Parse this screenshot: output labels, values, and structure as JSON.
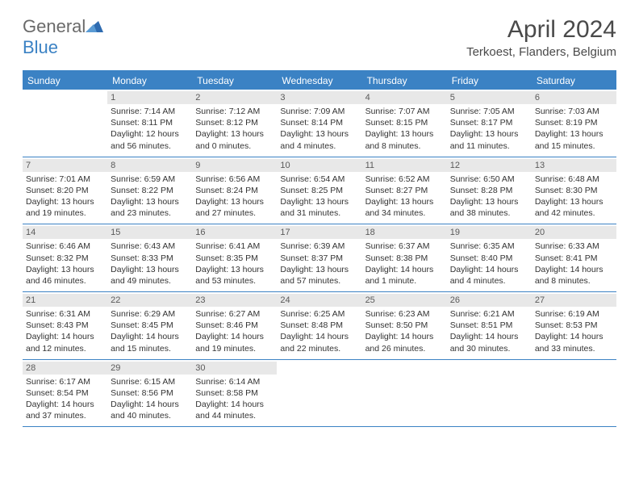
{
  "brand": {
    "name_part1": "General",
    "name_part2": "Blue",
    "icon_color": "#2e6bb0"
  },
  "title": "April 2024",
  "location": "Terkoest, Flanders, Belgium",
  "colors": {
    "header_bg": "#3b82c4",
    "header_text": "#ffffff",
    "daynum_bg": "#e8e8e8",
    "border": "#3b82c4",
    "body_text": "#333333",
    "title_text": "#4a4a4a"
  },
  "weekdays": [
    "Sunday",
    "Monday",
    "Tuesday",
    "Wednesday",
    "Thursday",
    "Friday",
    "Saturday"
  ],
  "weeks": [
    [
      null,
      {
        "n": "1",
        "sr": "7:14 AM",
        "ss": "8:11 PM",
        "dl": "12 hours and 56 minutes."
      },
      {
        "n": "2",
        "sr": "7:12 AM",
        "ss": "8:12 PM",
        "dl": "13 hours and 0 minutes."
      },
      {
        "n": "3",
        "sr": "7:09 AM",
        "ss": "8:14 PM",
        "dl": "13 hours and 4 minutes."
      },
      {
        "n": "4",
        "sr": "7:07 AM",
        "ss": "8:15 PM",
        "dl": "13 hours and 8 minutes."
      },
      {
        "n": "5",
        "sr": "7:05 AM",
        "ss": "8:17 PM",
        "dl": "13 hours and 11 minutes."
      },
      {
        "n": "6",
        "sr": "7:03 AM",
        "ss": "8:19 PM",
        "dl": "13 hours and 15 minutes."
      }
    ],
    [
      {
        "n": "7",
        "sr": "7:01 AM",
        "ss": "8:20 PM",
        "dl": "13 hours and 19 minutes."
      },
      {
        "n": "8",
        "sr": "6:59 AM",
        "ss": "8:22 PM",
        "dl": "13 hours and 23 minutes."
      },
      {
        "n": "9",
        "sr": "6:56 AM",
        "ss": "8:24 PM",
        "dl": "13 hours and 27 minutes."
      },
      {
        "n": "10",
        "sr": "6:54 AM",
        "ss": "8:25 PM",
        "dl": "13 hours and 31 minutes."
      },
      {
        "n": "11",
        "sr": "6:52 AM",
        "ss": "8:27 PM",
        "dl": "13 hours and 34 minutes."
      },
      {
        "n": "12",
        "sr": "6:50 AM",
        "ss": "8:28 PM",
        "dl": "13 hours and 38 minutes."
      },
      {
        "n": "13",
        "sr": "6:48 AM",
        "ss": "8:30 PM",
        "dl": "13 hours and 42 minutes."
      }
    ],
    [
      {
        "n": "14",
        "sr": "6:46 AM",
        "ss": "8:32 PM",
        "dl": "13 hours and 46 minutes."
      },
      {
        "n": "15",
        "sr": "6:43 AM",
        "ss": "8:33 PM",
        "dl": "13 hours and 49 minutes."
      },
      {
        "n": "16",
        "sr": "6:41 AM",
        "ss": "8:35 PM",
        "dl": "13 hours and 53 minutes."
      },
      {
        "n": "17",
        "sr": "6:39 AM",
        "ss": "8:37 PM",
        "dl": "13 hours and 57 minutes."
      },
      {
        "n": "18",
        "sr": "6:37 AM",
        "ss": "8:38 PM",
        "dl": "14 hours and 1 minute."
      },
      {
        "n": "19",
        "sr": "6:35 AM",
        "ss": "8:40 PM",
        "dl": "14 hours and 4 minutes."
      },
      {
        "n": "20",
        "sr": "6:33 AM",
        "ss": "8:41 PM",
        "dl": "14 hours and 8 minutes."
      }
    ],
    [
      {
        "n": "21",
        "sr": "6:31 AM",
        "ss": "8:43 PM",
        "dl": "14 hours and 12 minutes."
      },
      {
        "n": "22",
        "sr": "6:29 AM",
        "ss": "8:45 PM",
        "dl": "14 hours and 15 minutes."
      },
      {
        "n": "23",
        "sr": "6:27 AM",
        "ss": "8:46 PM",
        "dl": "14 hours and 19 minutes."
      },
      {
        "n": "24",
        "sr": "6:25 AM",
        "ss": "8:48 PM",
        "dl": "14 hours and 22 minutes."
      },
      {
        "n": "25",
        "sr": "6:23 AM",
        "ss": "8:50 PM",
        "dl": "14 hours and 26 minutes."
      },
      {
        "n": "26",
        "sr": "6:21 AM",
        "ss": "8:51 PM",
        "dl": "14 hours and 30 minutes."
      },
      {
        "n": "27",
        "sr": "6:19 AM",
        "ss": "8:53 PM",
        "dl": "14 hours and 33 minutes."
      }
    ],
    [
      {
        "n": "28",
        "sr": "6:17 AM",
        "ss": "8:54 PM",
        "dl": "14 hours and 37 minutes."
      },
      {
        "n": "29",
        "sr": "6:15 AM",
        "ss": "8:56 PM",
        "dl": "14 hours and 40 minutes."
      },
      {
        "n": "30",
        "sr": "6:14 AM",
        "ss": "8:58 PM",
        "dl": "14 hours and 44 minutes."
      },
      null,
      null,
      null,
      null
    ]
  ],
  "labels": {
    "sunrise": "Sunrise:",
    "sunset": "Sunset:",
    "daylight": "Daylight:"
  }
}
